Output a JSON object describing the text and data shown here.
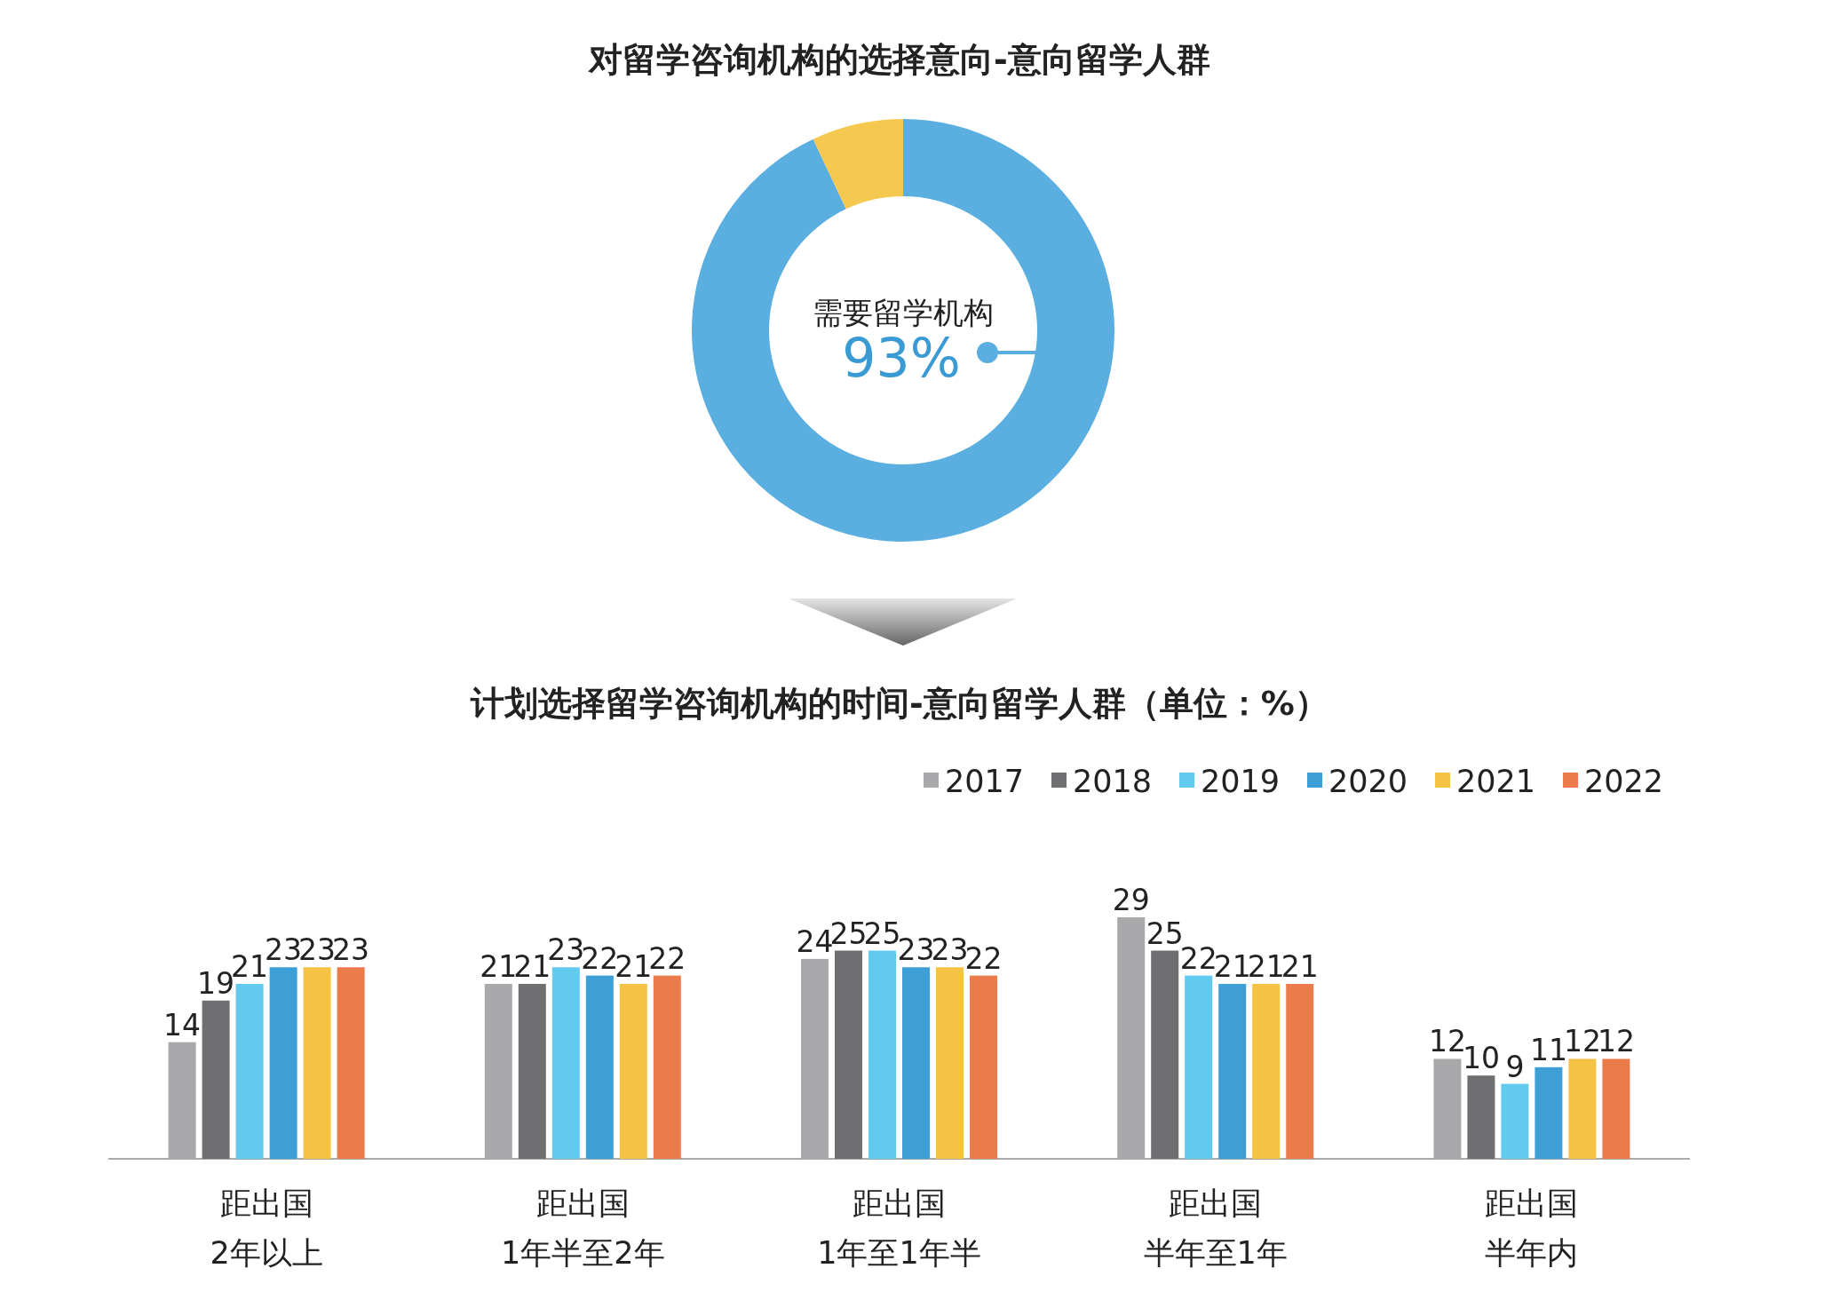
{
  "chart_data": [
    {
      "type": "donut",
      "title": "对留学咨询机构的选择意向-意向留学人群",
      "categories": [
        "需要留学机构",
        null
      ],
      "values": [
        93,
        7
      ],
      "colors": [
        "#5aaee0",
        "#f5c850"
      ],
      "value_labels": [
        "93%",
        null
      ]
    },
    {
      "type": "bar",
      "title": "计划选择留学咨询机构的时间-意向留学人群（单位：%）",
      "categories": [
        "距出国2年以上",
        "距出国1年半至2年",
        "距出国1年至1年半",
        "距出国半年至1年",
        "距出国半年内"
      ],
      "data_labels": true,
      "legend": "top right",
      "series": [
        {
          "name": "2017",
          "color": "#a9a9ab",
          "values": [
            14,
            21,
            24,
            29,
            12
          ]
        },
        {
          "name": "2018",
          "color": "#6f6f72",
          "values": [
            19,
            21,
            25,
            25,
            10
          ]
        },
        {
          "name": "2019",
          "color": "#62c9ef",
          "values": [
            21,
            23,
            25,
            22,
            9
          ]
        },
        {
          "name": "2020",
          "color": "#3e9ed6",
          "values": [
            23,
            22,
            23,
            21,
            11
          ]
        },
        {
          "name": "2021",
          "color": "#f5c243",
          "values": [
            23,
            21,
            23,
            21,
            12
          ]
        },
        {
          "name": "2022",
          "color": "#ec7b4b",
          "values": [
            23,
            22,
            22,
            21,
            12
          ]
        }
      ]
    }
  ]
}
